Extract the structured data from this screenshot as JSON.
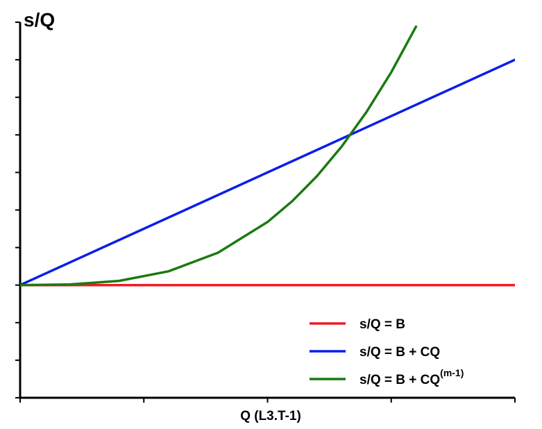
{
  "chart_data": {
    "type": "line",
    "title": "",
    "ylabel": "s/Q",
    "xlabel": "Q (L3.T-1)",
    "xlim": [
      0,
      1
    ],
    "ylim": [
      -0.3,
      0.7
    ],
    "grid": false,
    "legend_position": "bottom-right",
    "series": [
      {
        "name": "s/Q = B",
        "name_sup": "",
        "color": "#ee1c24",
        "x": [
          0,
          1
        ],
        "y": [
          0,
          0
        ]
      },
      {
        "name": "s/Q = B + CQ",
        "name_sup": "",
        "color": "#0a1ee8",
        "x": [
          0,
          1
        ],
        "y": [
          0,
          0.6
        ]
      },
      {
        "name": "s/Q = B + CQ",
        "name_sup": "(m-1)",
        "color": "#1a7a10",
        "x": [
          0,
          0.1,
          0.2,
          0.3,
          0.4,
          0.5,
          0.55,
          0.6,
          0.65,
          0.7,
          0.75,
          0.8
        ],
        "y": [
          0,
          0.0016,
          0.0112,
          0.0368,
          0.0864,
          0.168,
          0.2236,
          0.2903,
          0.3691,
          0.461,
          0.567,
          0.6882
        ]
      }
    ]
  }
}
